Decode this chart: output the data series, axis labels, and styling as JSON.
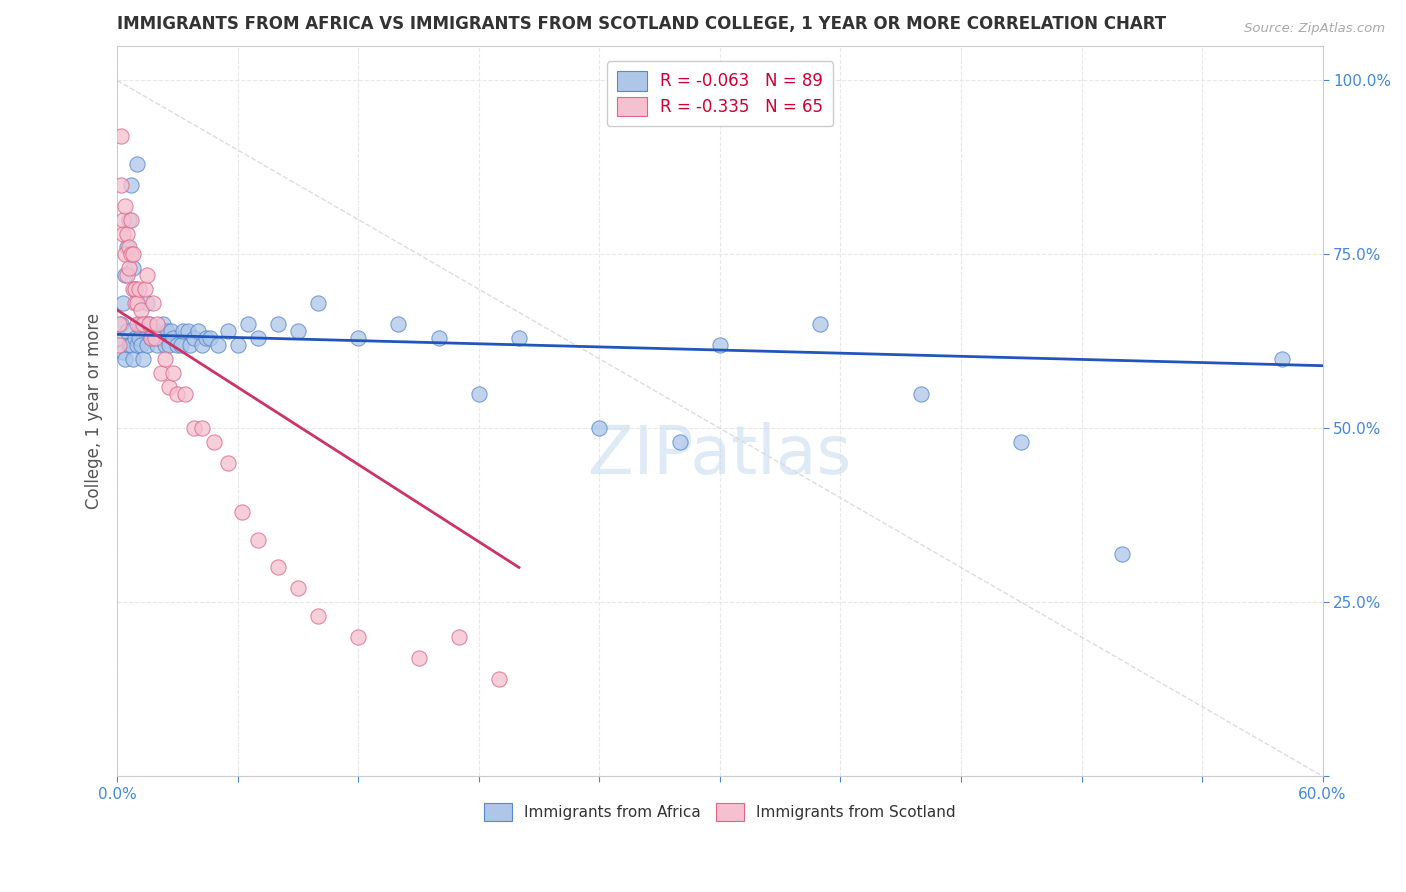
{
  "title": "IMMIGRANTS FROM AFRICA VS IMMIGRANTS FROM SCOTLAND COLLEGE, 1 YEAR OR MORE CORRELATION CHART",
  "source": "Source: ZipAtlas.com",
  "ylabel": "College, 1 year or more",
  "xlim": [
    0.0,
    0.6
  ],
  "ylim": [
    0.0,
    1.05
  ],
  "xticks": [
    0.0,
    0.06,
    0.12,
    0.18,
    0.24,
    0.3,
    0.36,
    0.42,
    0.48,
    0.54,
    0.6
  ],
  "yticks": [
    0.0,
    0.25,
    0.5,
    0.75,
    1.0
  ],
  "blue_color": "#aec6e8",
  "blue_edge": "#5588cc",
  "pink_color": "#f5c0d0",
  "pink_edge": "#dd6688",
  "blue_line_color": "#2255bb",
  "pink_line_color": "#cc3366",
  "ref_line_color": "#dddddd",
  "grid_color": "#e8e8e8",
  "blue_intercept": 0.635,
  "blue_slope": -0.075,
  "pink_intercept": 0.67,
  "pink_slope": -1.85,
  "pink_line_x_end": 0.2,
  "legend_label_blue": "R = -0.063   N = 89",
  "legend_label_pink": "R = -0.335   N = 65",
  "legend_bottom_blue": "Immigrants from Africa",
  "legend_bottom_pink": "Immigrants from Scotland",
  "blue_scatter_x": [
    0.001,
    0.002,
    0.003,
    0.003,
    0.004,
    0.004,
    0.005,
    0.005,
    0.006,
    0.006,
    0.007,
    0.007,
    0.008,
    0.008,
    0.009,
    0.009,
    0.01,
    0.01,
    0.011,
    0.011,
    0.012,
    0.012,
    0.013,
    0.014,
    0.015,
    0.015,
    0.016,
    0.017,
    0.018,
    0.019,
    0.02,
    0.021,
    0.022,
    0.023,
    0.024,
    0.025,
    0.026,
    0.027,
    0.028,
    0.03,
    0.032,
    0.033,
    0.035,
    0.036,
    0.038,
    0.04,
    0.042,
    0.044,
    0.046,
    0.05,
    0.055,
    0.06,
    0.065,
    0.07,
    0.08,
    0.09,
    0.1,
    0.12,
    0.14,
    0.16,
    0.18,
    0.2,
    0.24,
    0.28,
    0.3,
    0.35,
    0.4,
    0.45,
    0.5,
    0.58
  ],
  "blue_scatter_y": [
    0.63,
    0.65,
    0.68,
    0.61,
    0.72,
    0.6,
    0.76,
    0.64,
    0.8,
    0.62,
    0.85,
    0.62,
    0.73,
    0.6,
    0.7,
    0.63,
    0.88,
    0.62,
    0.65,
    0.63,
    0.65,
    0.62,
    0.6,
    0.65,
    0.68,
    0.62,
    0.65,
    0.63,
    0.63,
    0.64,
    0.62,
    0.63,
    0.63,
    0.65,
    0.62,
    0.64,
    0.62,
    0.64,
    0.63,
    0.62,
    0.62,
    0.64,
    0.64,
    0.62,
    0.63,
    0.64,
    0.62,
    0.63,
    0.63,
    0.62,
    0.64,
    0.62,
    0.65,
    0.63,
    0.65,
    0.64,
    0.68,
    0.63,
    0.65,
    0.63,
    0.55,
    0.63,
    0.5,
    0.48,
    0.62,
    0.65,
    0.55,
    0.48,
    0.32,
    0.6
  ],
  "pink_scatter_x": [
    0.001,
    0.001,
    0.002,
    0.002,
    0.003,
    0.003,
    0.004,
    0.004,
    0.005,
    0.005,
    0.006,
    0.006,
    0.007,
    0.007,
    0.008,
    0.008,
    0.009,
    0.009,
    0.01,
    0.01,
    0.011,
    0.012,
    0.013,
    0.014,
    0.015,
    0.016,
    0.017,
    0.018,
    0.019,
    0.02,
    0.022,
    0.024,
    0.026,
    0.028,
    0.03,
    0.034,
    0.038,
    0.042,
    0.048,
    0.055,
    0.062,
    0.07,
    0.08,
    0.09,
    0.1,
    0.12,
    0.15,
    0.17,
    0.19
  ],
  "pink_scatter_y": [
    0.62,
    0.65,
    0.92,
    0.85,
    0.8,
    0.78,
    0.82,
    0.75,
    0.72,
    0.78,
    0.76,
    0.73,
    0.8,
    0.75,
    0.7,
    0.75,
    0.68,
    0.7,
    0.65,
    0.68,
    0.7,
    0.67,
    0.65,
    0.7,
    0.72,
    0.65,
    0.63,
    0.68,
    0.63,
    0.65,
    0.58,
    0.6,
    0.56,
    0.58,
    0.55,
    0.55,
    0.5,
    0.5,
    0.48,
    0.45,
    0.38,
    0.34,
    0.3,
    0.27,
    0.23,
    0.2,
    0.17,
    0.2,
    0.14
  ],
  "background_color": "#ffffff",
  "title_color": "#333333",
  "axis_label_color": "#555555",
  "tick_color": "#4488dd",
  "watermark_color": "#c8ddf0",
  "watermark_alpha": 0.6
}
